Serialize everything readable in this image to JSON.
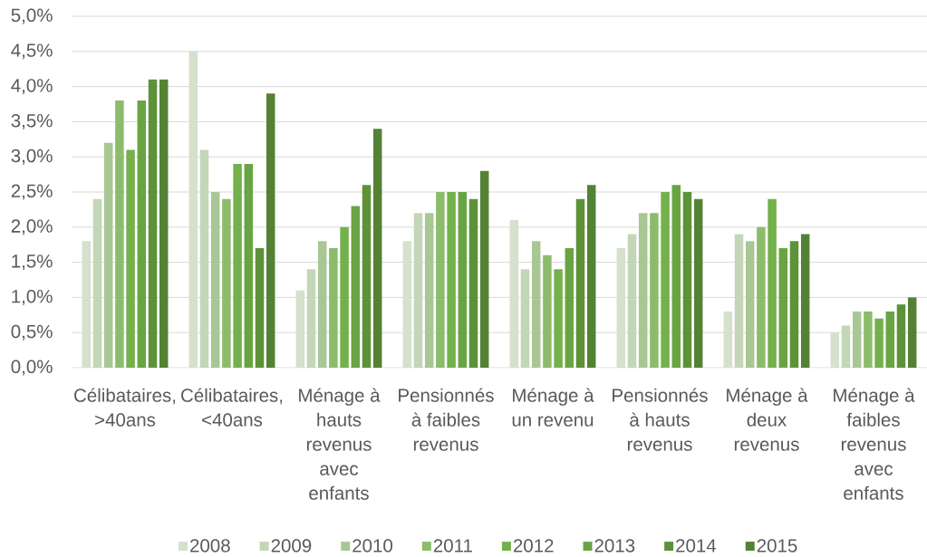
{
  "chart_data": {
    "type": "bar",
    "categories": [
      "Célibataires, >40ans",
      "Célibataires, <40ans",
      "Ménage à hauts revenus avec enfants",
      "Pensionnés à faibles revenus",
      "Ménage à un revenu",
      "Pensionnés à hauts revenus",
      "Ménage à deux revenus",
      "Ménage à faibles revenus avec enfants"
    ],
    "series": [
      {
        "name": "2008",
        "color": "#d5e0cd",
        "values": [
          1.8,
          4.5,
          1.1,
          1.8,
          2.1,
          1.7,
          0.8,
          0.5
        ]
      },
      {
        "name": "2009",
        "color": "#c3d6b7",
        "values": [
          2.4,
          3.1,
          1.4,
          2.2,
          1.4,
          1.9,
          1.9,
          0.6
        ]
      },
      {
        "name": "2010",
        "color": "#a8c794",
        "values": [
          3.2,
          2.5,
          1.8,
          2.2,
          1.8,
          2.2,
          1.8,
          0.8
        ]
      },
      {
        "name": "2011",
        "color": "#8cbc6b",
        "values": [
          3.8,
          2.4,
          1.7,
          2.5,
          1.6,
          2.2,
          2.0,
          0.8
        ]
      },
      {
        "name": "2012",
        "color": "#74b04b",
        "values": [
          3.1,
          2.9,
          2.0,
          2.5,
          1.4,
          2.5,
          2.4,
          0.7
        ]
      },
      {
        "name": "2013",
        "color": "#69a443",
        "values": [
          3.8,
          2.9,
          2.3,
          2.5,
          1.7,
          2.6,
          1.7,
          0.8
        ]
      },
      {
        "name": "2014",
        "color": "#5d9239",
        "values": [
          4.1,
          1.7,
          2.6,
          2.4,
          2.4,
          2.5,
          1.8,
          0.9
        ]
      },
      {
        "name": "2015",
        "color": "#548235",
        "values": [
          4.1,
          3.9,
          3.4,
          2.8,
          2.6,
          2.4,
          1.9,
          1.0
        ]
      }
    ],
    "ylim": [
      0,
      5
    ],
    "yticks": [
      {
        "value": 0,
        "label": "0,0%"
      },
      {
        "value": 0.5,
        "label": "0,5%"
      },
      {
        "value": 1,
        "label": "1,0%"
      },
      {
        "value": 1.5,
        "label": "1,5%"
      },
      {
        "value": 2,
        "label": "2,0%"
      },
      {
        "value": 2.5,
        "label": "2,5%"
      },
      {
        "value": 3,
        "label": "3,0%"
      },
      {
        "value": 3.5,
        "label": "3,5%"
      },
      {
        "value": 4,
        "label": "4,0%"
      },
      {
        "value": 4.5,
        "label": "4,5%"
      },
      {
        "value": 5,
        "label": "5,0%"
      }
    ],
    "grid": "y",
    "legend": "bottom"
  }
}
